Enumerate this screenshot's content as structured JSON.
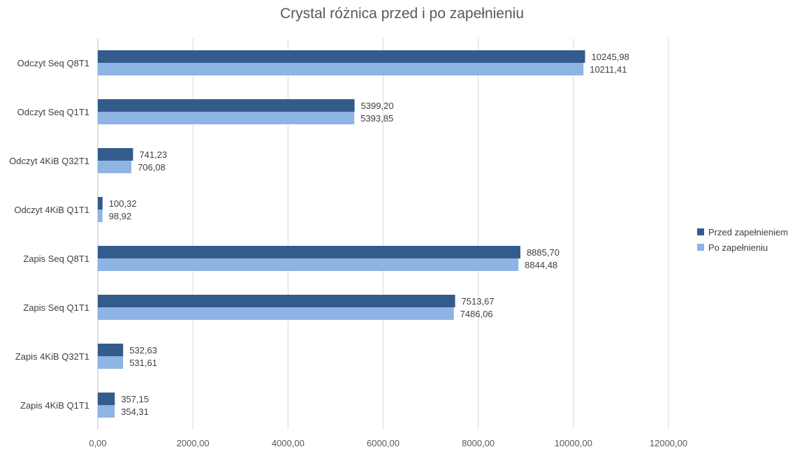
{
  "chart_data": {
    "type": "bar",
    "orientation": "horizontal",
    "title": "Crystal różnica przed i po zapełnieniu",
    "categories": [
      "Odczyt Seq Q8T1",
      "Odczyt Seq Q1T1",
      "Odczyt 4KiB Q32T1",
      "Odczyt 4KiB Q1T1",
      "Zapis Seq Q8T1",
      "Zapis Seq Q1T1",
      "Zapis 4KiB Q32T1",
      "Zapis 4KiB Q1T1"
    ],
    "series": [
      {
        "name": "Przed zapełnieniem",
        "color": "#335c8d",
        "values": [
          10245.98,
          5399.2,
          741.23,
          100.32,
          8885.7,
          7513.67,
          532.63,
          357.15
        ],
        "labels": [
          "10245,98",
          "5399,20",
          "741,23",
          "100,32",
          "8885,70",
          "7513,67",
          "532,63",
          "357,15"
        ]
      },
      {
        "name": "Po zapełnieniu",
        "color": "#8eb4e3",
        "values": [
          10211.41,
          5393.85,
          706.08,
          98.92,
          8844.48,
          7486.06,
          531.61,
          354.31
        ],
        "labels": [
          "10211,41",
          "5393,85",
          "706,08",
          "98,92",
          "8844,48",
          "7486,06",
          "531,61",
          "354,31"
        ]
      }
    ],
    "xlim": [
      0,
      12000
    ],
    "xticks": [
      0,
      2000,
      4000,
      6000,
      8000,
      10000,
      12000
    ],
    "xtick_labels": [
      "0,00",
      "2000,00",
      "4000,00",
      "6000,00",
      "8000,00",
      "10000,00",
      "12000,00"
    ],
    "grid": true,
    "legend_position": "right"
  }
}
